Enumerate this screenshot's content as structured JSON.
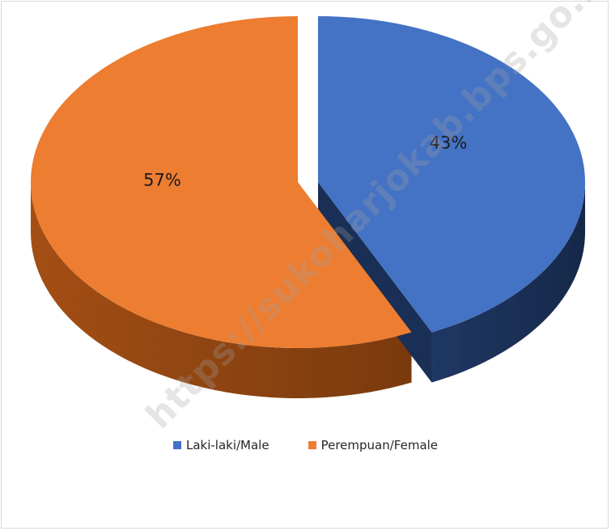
{
  "chart_data": {
    "type": "pie",
    "style": "3d-exploded",
    "title": "",
    "slices": [
      {
        "name": "Laki-laki/Male",
        "value": 43,
        "label": "43%",
        "color": "#4472C4",
        "side_color": "#1F3864"
      },
      {
        "name": "Perempuan/Female",
        "value": 57,
        "label": "57%",
        "color": "#ED7D31",
        "side_color": "#A34E14"
      }
    ],
    "legend_position": "bottom"
  },
  "watermark": "https://sukoharjokab.bps.go.id"
}
